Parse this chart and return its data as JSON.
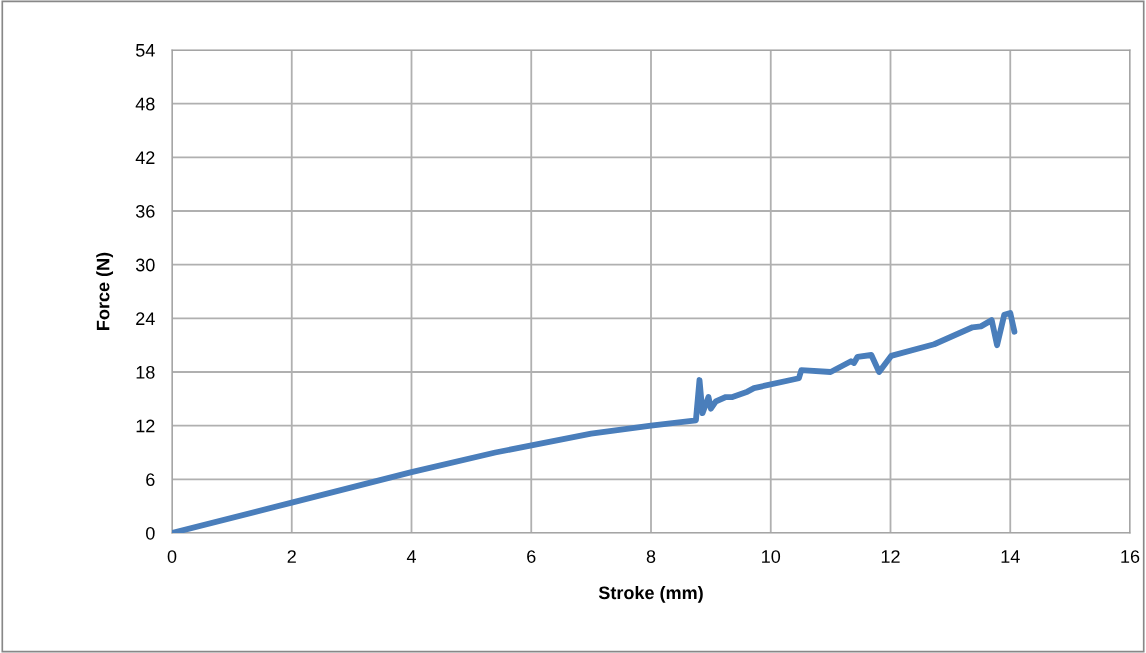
{
  "chart_data": {
    "type": "line",
    "xlabel": "Stroke (mm)",
    "ylabel": "Force (N)",
    "xlim": [
      0,
      16
    ],
    "xticks": [
      0,
      2,
      4,
      6,
      8,
      10,
      12,
      14,
      16
    ],
    "ylim": [
      0,
      54
    ],
    "yticks": [
      0,
      6,
      12,
      18,
      24,
      30,
      36,
      42,
      48,
      54
    ],
    "grid": true,
    "marker": "none",
    "line_style": "solid",
    "series": [
      {
        "color": "#4a7ebb",
        "x": [
          0,
          2,
          4,
          5.4,
          7,
          8,
          8.75,
          8.81,
          8.86,
          8.96,
          9.0,
          9.08,
          9.25,
          9.36,
          9.61,
          9.72,
          10.47,
          10.51,
          11.0,
          11.34,
          11.39,
          11.45,
          11.68,
          11.81,
          12.01,
          12.73,
          13.37,
          13.51,
          13.69,
          13.78,
          13.9,
          14.0,
          14.07
        ],
        "values": [
          0,
          3.4,
          6.8,
          9.0,
          11.1,
          12.0,
          12.6,
          17.1,
          13.4,
          15.2,
          13.9,
          14.7,
          15.2,
          15.2,
          15.8,
          16.2,
          17.3,
          18.2,
          18.0,
          19.2,
          19.0,
          19.7,
          19.9,
          18.0,
          19.8,
          21.1,
          23.0,
          23.1,
          23.8,
          21.0,
          24.4,
          24.6,
          22.5
        ]
      }
    ]
  }
}
